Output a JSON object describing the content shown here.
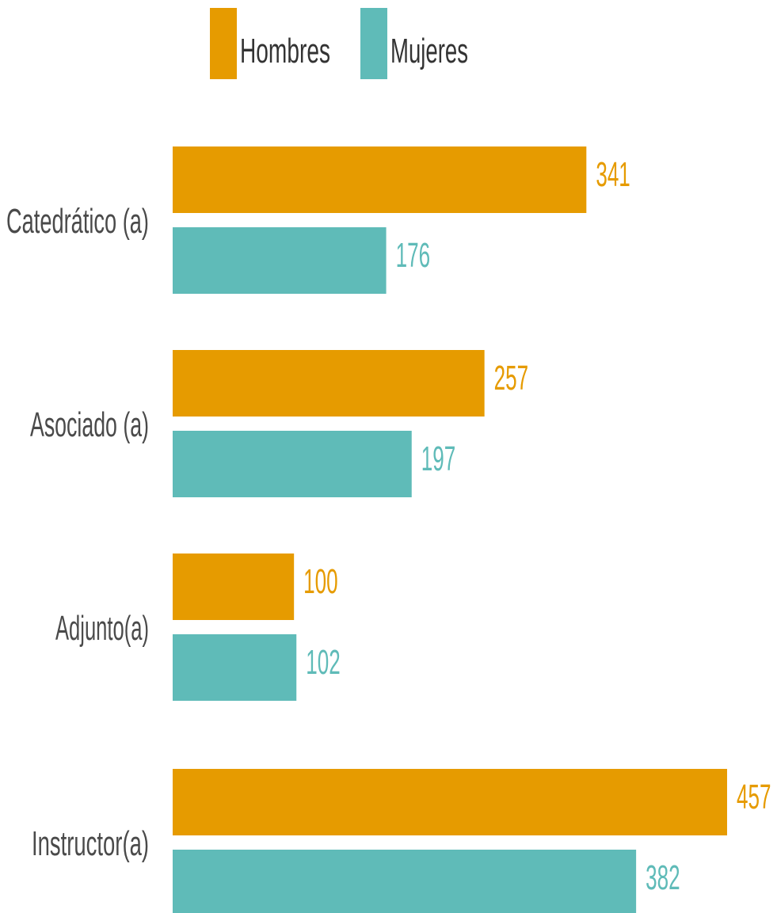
{
  "chart_data": {
    "type": "bar",
    "orientation": "horizontal",
    "categories": [
      "Catedrático (a)",
      "Asociado (a)",
      "Adjunto(a)",
      "Instructor(a)"
    ],
    "series": [
      {
        "name": "Hombres",
        "values": [
          341,
          257,
          100,
          457
        ],
        "color": "#E69B00"
      },
      {
        "name": "Mujeres",
        "values": [
          176,
          197,
          102,
          382
        ],
        "color": "#5FBBB8"
      }
    ],
    "title": "",
    "xlabel": "",
    "ylabel": "",
    "xlim": [
      0,
      457
    ],
    "legend": "top-center",
    "grid": false,
    "data_labels": true
  }
}
